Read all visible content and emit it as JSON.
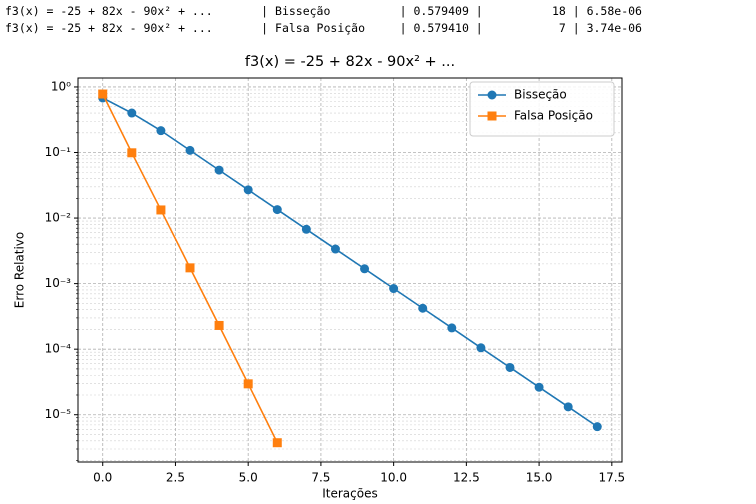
{
  "console_lines": [
    "f3(x) = -25 + 82x - 90x² + ...       | Bisseção          | 0.579409 |          18 | 6.58e-06",
    "f3(x) = -25 + 82x - 90x² + ...       | Falsa Posição     | 0.579410 |           7 | 3.74e-06"
  ],
  "chart_data": {
    "type": "line",
    "title": "f3(x) = -25 + 82x - 90x² + ...",
    "x_label": "Iterações",
    "y_label": "Erro Relativo",
    "y_scale": "log",
    "grid": true,
    "minor_grid": true,
    "legend": "upper right",
    "series": [
      {
        "name": "Bisseção",
        "color": "#1f77b4",
        "marker": "circle",
        "x": [
          0,
          1,
          2,
          3,
          4,
          5,
          6,
          7,
          8,
          9,
          10,
          11,
          12,
          13,
          14,
          15,
          16,
          17
        ],
        "values": [
          0.68,
          0.4,
          0.2156,
          0.1078,
          0.0539,
          0.02695,
          0.01348,
          0.00674,
          0.00337,
          0.001685,
          0.000842,
          0.000421,
          0.000211,
          0.000105,
          5.26e-05,
          2.63e-05,
          1.32e-05,
          6.58e-06
        ]
      },
      {
        "name": "Falsa Posição",
        "color": "#ff7f0e",
        "marker": "square",
        "x": [
          0,
          1,
          2,
          3,
          4,
          5,
          6
        ],
        "values": [
          0.78,
          0.099,
          0.0133,
          0.00174,
          0.00023,
          2.96e-05,
          3.74e-06
        ]
      }
    ],
    "xlim": [
      -0.85,
      17.85
    ],
    "xticks": [
      {
        "value": 0,
        "label": "0.0"
      },
      2.5,
      {
        "value": 5,
        "label": "5.0"
      },
      7.5,
      {
        "value": 10,
        "label": "10.0"
      },
      12.5,
      {
        "value": 15,
        "label": "15.0"
      },
      17.5
    ],
    "ylim": [
      1.9e-06,
      1.37
    ],
    "yticks": [
      {
        "value": 1,
        "label": "10⁰"
      },
      {
        "value": 0.1,
        "label": "10⁻¹"
      },
      {
        "value": 0.01,
        "label": "10⁻²"
      },
      {
        "value": 0.001,
        "label": "10⁻³"
      },
      {
        "value": 0.0001,
        "label": "10⁻⁴"
      },
      {
        "value": 1e-05,
        "label": "10⁻⁵"
      }
    ]
  }
}
